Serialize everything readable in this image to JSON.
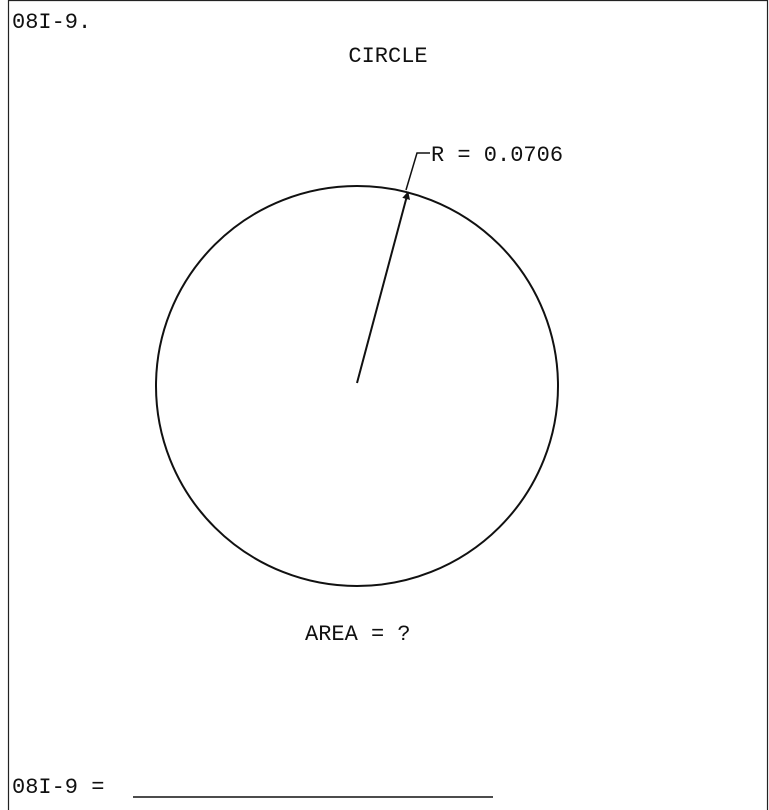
{
  "header": {
    "id": "08I-9.",
    "title": "CIRCLE"
  },
  "figure": {
    "radius_label": "R = 0.0706",
    "question": "AREA = ?"
  },
  "answer": {
    "label": "08I-9 ="
  }
}
